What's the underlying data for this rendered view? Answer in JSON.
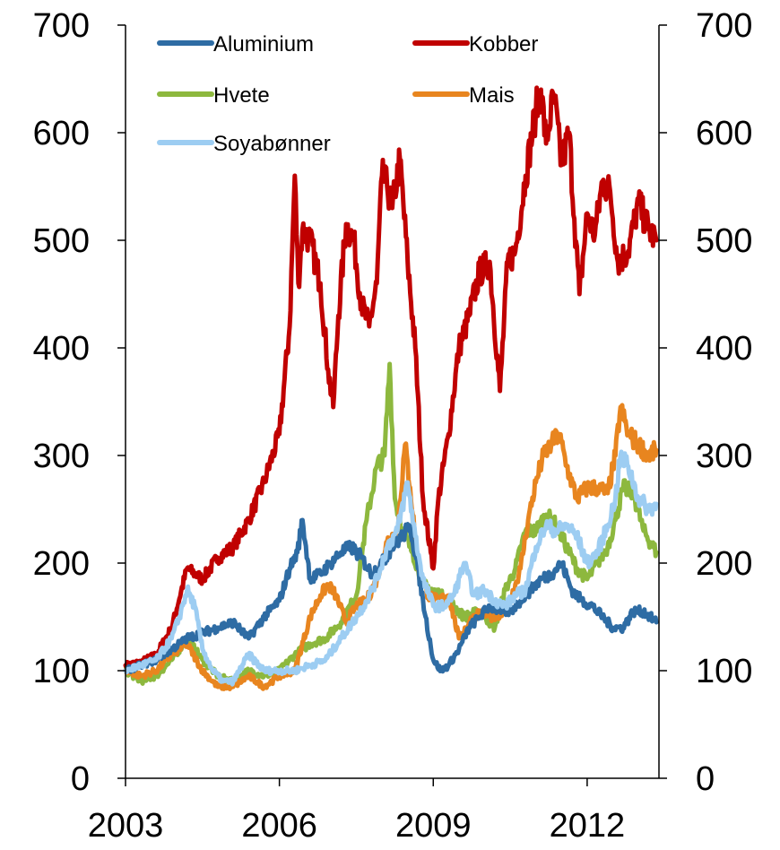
{
  "chart_data": {
    "type": "line",
    "title": "",
    "xlabel": "",
    "ylabel": "",
    "xlim": [
      2003,
      2013.4
    ],
    "ylim": [
      0,
      700
    ],
    "x_ticks": [
      2003,
      2006,
      2009,
      2012
    ],
    "y_ticks": [
      0,
      100,
      200,
      300,
      400,
      500,
      600,
      700
    ],
    "secondary_y_ticks": [
      0,
      100,
      200,
      300,
      400,
      500,
      600,
      700
    ],
    "grid": false,
    "legend_position": "top-left",
    "series": [
      {
        "name": "Kobber",
        "color": "#C00000",
        "x": [
          2003.0,
          2003.3,
          2003.6,
          2003.9,
          2004.2,
          2004.5,
          2004.8,
          2005.1,
          2005.4,
          2005.7,
          2006.0,
          2006.2,
          2006.3,
          2006.37,
          2006.45,
          2006.6,
          2006.8,
          2006.95,
          2007.05,
          2007.15,
          2007.3,
          2007.45,
          2007.6,
          2007.75,
          2007.9,
          2008.0,
          2008.1,
          2008.2,
          2008.35,
          2008.5,
          2008.65,
          2008.8,
          2008.95,
          2009.0,
          2009.1,
          2009.3,
          2009.5,
          2009.7,
          2009.9,
          2010.1,
          2010.3,
          2010.45,
          2010.6,
          2010.8,
          2011.0,
          2011.1,
          2011.2,
          2011.35,
          2011.5,
          2011.65,
          2011.75,
          2011.85,
          2012.0,
          2012.15,
          2012.3,
          2012.45,
          2012.6,
          2012.8,
          2013.0,
          2013.2,
          2013.35
        ],
        "values": [
          105,
          108,
          115,
          140,
          195,
          185,
          205,
          215,
          240,
          275,
          320,
          420,
          560,
          460,
          510,
          500,
          460,
          380,
          345,
          430,
          515,
          500,
          440,
          420,
          460,
          560,
          550,
          530,
          575,
          480,
          400,
          260,
          210,
          195,
          260,
          320,
          400,
          430,
          470,
          480,
          360,
          480,
          490,
          560,
          620,
          640,
          590,
          635,
          570,
          600,
          520,
          450,
          525,
          505,
          555,
          545,
          480,
          490,
          535,
          510,
          500
        ]
      },
      {
        "name": "Hvete",
        "color": "#8DB83E",
        "x": [
          2003.0,
          2003.3,
          2003.6,
          2003.9,
          2004.2,
          2004.5,
          2004.8,
          2005.1,
          2005.4,
          2005.7,
          2006.0,
          2006.3,
          2006.6,
          2006.9,
          2007.2,
          2007.5,
          2007.7,
          2007.9,
          2008.05,
          2008.15,
          2008.25,
          2008.4,
          2008.6,
          2008.8,
          2009.0,
          2009.3,
          2009.6,
          2009.9,
          2010.2,
          2010.4,
          2010.6,
          2010.8,
          2011.0,
          2011.2,
          2011.4,
          2011.6,
          2011.8,
          2012.0,
          2012.2,
          2012.4,
          2012.55,
          2012.7,
          2012.9,
          2013.1,
          2013.35
        ],
        "values": [
          100,
          90,
          95,
          110,
          130,
          110,
          95,
          90,
          100,
          95,
          100,
          115,
          125,
          130,
          145,
          170,
          240,
          290,
          300,
          385,
          260,
          230,
          210,
          180,
          175,
          165,
          150,
          155,
          140,
          175,
          195,
          230,
          230,
          245,
          235,
          215,
          195,
          185,
          200,
          215,
          240,
          270,
          265,
          230,
          210
        ]
      },
      {
        "name": "Mais",
        "color": "#E8851F",
        "x": [
          2003.0,
          2003.3,
          2003.6,
          2003.9,
          2004.2,
          2004.5,
          2004.8,
          2005.1,
          2005.4,
          2005.7,
          2006.0,
          2006.3,
          2006.6,
          2006.8,
          2006.95,
          2007.1,
          2007.3,
          2007.5,
          2007.7,
          2007.9,
          2008.1,
          2008.3,
          2008.45,
          2008.55,
          2008.7,
          2008.9,
          2009.1,
          2009.3,
          2009.5,
          2009.7,
          2009.9,
          2010.1,
          2010.3,
          2010.5,
          2010.7,
          2010.85,
          2011.0,
          2011.15,
          2011.3,
          2011.45,
          2011.6,
          2011.8,
          2012.0,
          2012.2,
          2012.4,
          2012.55,
          2012.65,
          2012.8,
          2013.0,
          2013.2,
          2013.35
        ],
        "values": [
          100,
          95,
          100,
          115,
          125,
          100,
          85,
          85,
          95,
          85,
          95,
          100,
          150,
          170,
          180,
          170,
          145,
          160,
          165,
          185,
          220,
          230,
          310,
          270,
          200,
          170,
          165,
          170,
          130,
          145,
          155,
          150,
          150,
          165,
          195,
          240,
          275,
          300,
          310,
          320,
          290,
          260,
          270,
          270,
          265,
          300,
          345,
          320,
          310,
          300,
          305
        ]
      },
      {
        "name": "Aluminium",
        "color": "#2E6CA4",
        "x": [
          2003.0,
          2003.3,
          2003.6,
          2003.9,
          2004.2,
          2004.5,
          2004.8,
          2005.1,
          2005.4,
          2005.7,
          2006.0,
          2006.2,
          2006.35,
          2006.45,
          2006.6,
          2006.8,
          2007.0,
          2007.2,
          2007.4,
          2007.6,
          2007.8,
          2008.0,
          2008.2,
          2008.4,
          2008.55,
          2008.7,
          2008.85,
          2009.0,
          2009.15,
          2009.3,
          2009.5,
          2009.7,
          2009.9,
          2010.1,
          2010.3,
          2010.5,
          2010.7,
          2010.9,
          2011.1,
          2011.3,
          2011.5,
          2011.7,
          2011.9,
          2012.1,
          2012.3,
          2012.5,
          2012.7,
          2012.9,
          2013.1,
          2013.35
        ],
        "values": [
          100,
          105,
          110,
          120,
          130,
          135,
          140,
          145,
          130,
          150,
          165,
          195,
          210,
          240,
          185,
          190,
          200,
          210,
          215,
          205,
          190,
          200,
          215,
          225,
          235,
          195,
          150,
          110,
          100,
          105,
          120,
          140,
          150,
          160,
          155,
          155,
          165,
          175,
          185,
          190,
          200,
          175,
          165,
          160,
          150,
          140,
          140,
          155,
          155,
          145
        ]
      },
      {
        "name": "Soyabønner",
        "color": "#9DCDF2",
        "x": [
          2003.0,
          2003.3,
          2003.6,
          2003.9,
          2004.05,
          2004.2,
          2004.35,
          2004.5,
          2004.7,
          2004.9,
          2005.1,
          2005.4,
          2005.7,
          2006.0,
          2006.3,
          2006.6,
          2006.9,
          2007.2,
          2007.5,
          2007.7,
          2007.9,
          2008.1,
          2008.3,
          2008.5,
          2008.65,
          2008.8,
          2009.0,
          2009.2,
          2009.4,
          2009.6,
          2009.8,
          2010.0,
          2010.2,
          2010.4,
          2010.6,
          2010.8,
          2011.0,
          2011.2,
          2011.4,
          2011.6,
          2011.8,
          2012.0,
          2012.2,
          2012.4,
          2012.55,
          2012.65,
          2012.8,
          2013.0,
          2013.2,
          2013.35
        ],
        "values": [
          100,
          105,
          110,
          130,
          150,
          175,
          160,
          120,
          100,
          90,
          90,
          115,
          100,
          100,
          100,
          105,
          110,
          130,
          150,
          165,
          185,
          215,
          230,
          275,
          225,
          185,
          160,
          160,
          170,
          200,
          170,
          175,
          165,
          160,
          170,
          175,
          215,
          235,
          230,
          235,
          225,
          200,
          210,
          235,
          260,
          300,
          290,
          260,
          250,
          255
        ]
      }
    ],
    "legend_order": [
      "Aluminium",
      "Kobber",
      "Hvete",
      "Mais",
      "Soyabønner"
    ]
  }
}
